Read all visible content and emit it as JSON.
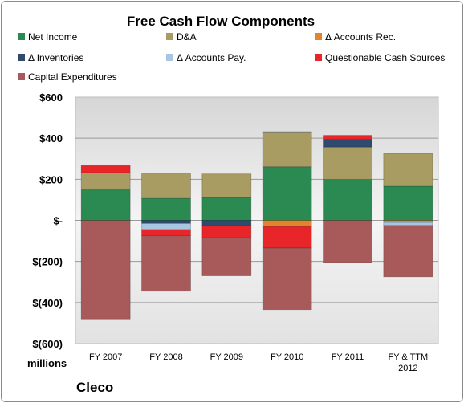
{
  "chart_data": {
    "type": "bar",
    "stacked": true,
    "title": "Free Cash Flow Components",
    "ylabel_unit": "millions",
    "company": "Cleco",
    "categories": [
      "FY 2007",
      "FY 2008",
      "FY 2009",
      "FY 2010",
      "FY 2011",
      "FY & TTM|2012"
    ],
    "ylim": [
      -600,
      600
    ],
    "yticks": [
      600,
      400,
      200,
      0,
      -200,
      -400,
      -600
    ],
    "ytick_labels": [
      "$600",
      "$400",
      "$200",
      "$-",
      "$(200)",
      "$(400)",
      "$(600)"
    ],
    "grid": true,
    "legend_position": "top",
    "series": [
      {
        "name": "Net Income",
        "color": "#2a8a52",
        "values": [
          152,
          107,
          111,
          261,
          199,
          166
        ]
      },
      {
        "name": "D&A",
        "color": "#a89c62",
        "values": [
          80,
          120,
          115,
          166,
          158,
          160
        ]
      },
      {
        "name": "Δ Accounts Rec.",
        "color": "#e0852a",
        "values": [
          0,
          0,
          0,
          -30,
          0,
          -10
        ]
      },
      {
        "name": "Δ Inventories",
        "color": "#2f4a6e",
        "values": [
          0,
          -15,
          -25,
          0,
          37,
          0
        ]
      },
      {
        "name": "Δ Accounts Pay.",
        "color": "#a8c6e2",
        "values": [
          0,
          -30,
          0,
          5,
          0,
          -15
        ]
      },
      {
        "name": "Questionable Cash Sources",
        "color": "#e8262a",
        "values": [
          35,
          -30,
          -60,
          -105,
          20,
          0
        ]
      },
      {
        "name": "Capital Expenditures",
        "color": "#a85a5a",
        "values": [
          -480,
          -270,
          -185,
          -300,
          -205,
          -250
        ]
      }
    ]
  }
}
